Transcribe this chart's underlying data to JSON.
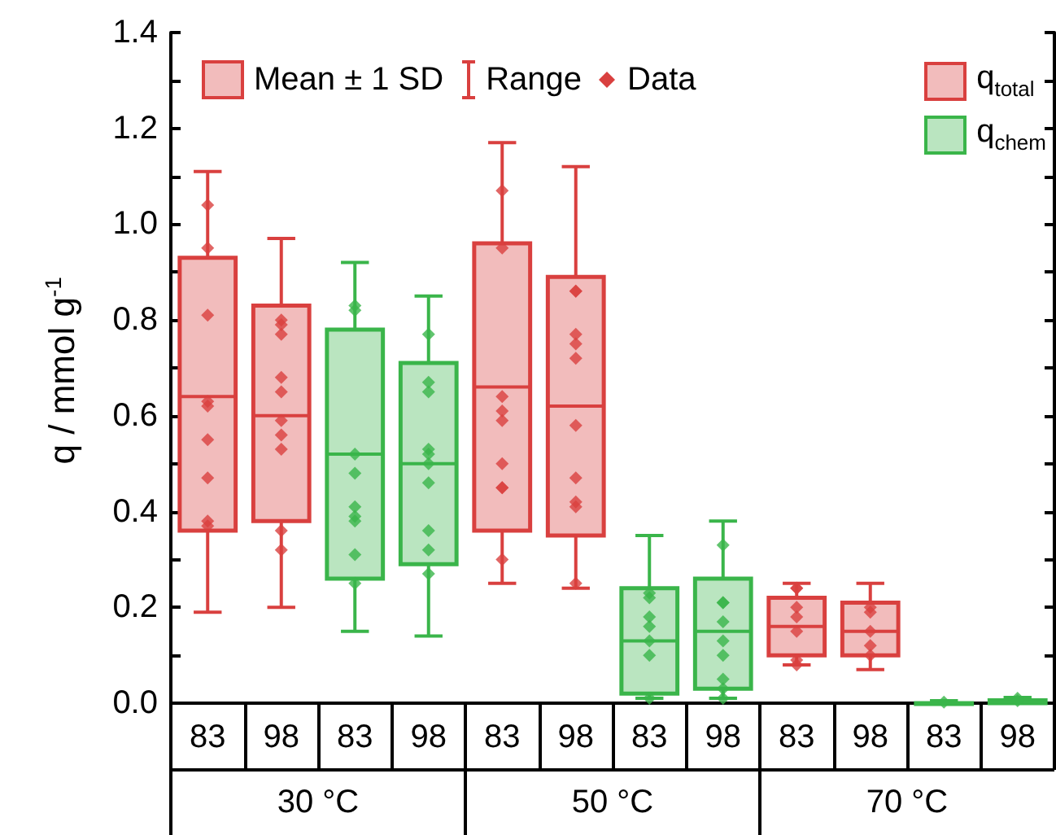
{
  "chart_data": {
    "type": "box",
    "ylabel": "q / mmol g$^{-1}$",
    "categories": [
      "83",
      "98",
      "83",
      "98",
      "83",
      "98",
      "83",
      "98",
      "83",
      "98",
      "83",
      "98"
    ],
    "ylim": [
      0,
      1.4
    ],
    "yticks": [
      {
        "value": 0,
        "label": "0.0"
      },
      {
        "value": 0.1,
        "label": null
      },
      {
        "value": 0.2,
        "label": "0.2"
      },
      {
        "value": 0.3,
        "label": null
      },
      {
        "value": 0.4,
        "label": "0.4"
      },
      {
        "value": 0.5,
        "label": null
      },
      {
        "value": 0.6,
        "label": "0.6"
      },
      {
        "value": 0.7,
        "label": null
      },
      {
        "value": 0.8,
        "label": "0.8"
      },
      {
        "value": 0.9,
        "label": null
      },
      {
        "value": 1.0,
        "label": "1.0"
      },
      {
        "value": 1.1,
        "label": null
      },
      {
        "value": 1.2,
        "label": "1.2"
      },
      {
        "value": 1.3,
        "label": null
      },
      {
        "value": 1.4,
        "label": "1.4"
      }
    ],
    "series": [
      {
        "name": "q$_{total}$",
        "color": "#d9403f",
        "boxes": [
          {
            "low": 0.19,
            "q1": 0.36,
            "median": 0.64,
            "q3": 0.93,
            "high": 1.11,
            "outliers": [
              1.04,
              0.95,
              0.81,
              0.63,
              0.62,
              0.55,
              0.47,
              0.38,
              0.37
            ]
          },
          {
            "low": 0.2,
            "q1": 0.38,
            "median": 0.6,
            "q3": 0.83,
            "high": 0.97,
            "outliers": [
              0.8,
              0.79,
              0.77,
              0.68,
              0.65,
              0.59,
              0.56,
              0.53,
              0.36,
              0.32
            ]
          },
          null,
          null,
          {
            "low": 0.25,
            "q1": 0.36,
            "median": 0.66,
            "q3": 0.96,
            "high": 1.17,
            "outliers": [
              1.07,
              0.95,
              0.64,
              0.61,
              0.59,
              0.5,
              0.45,
              0.45,
              0.3
            ]
          },
          {
            "low": 0.24,
            "q1": 0.35,
            "median": 0.62,
            "q3": 0.89,
            "high": 1.12,
            "outliers": [
              0.86,
              0.86,
              0.77,
              0.75,
              0.72,
              0.58,
              0.47,
              0.42,
              0.41,
              0.25
            ]
          },
          null,
          null,
          {
            "low": 0.08,
            "q1": 0.1,
            "median": 0.16,
            "q3": 0.22,
            "high": 0.25,
            "outliers": [
              0.24,
              0.24,
              0.2,
              0.18,
              0.15,
              0.09,
              0.08
            ]
          },
          {
            "low": 0.07,
            "q1": 0.1,
            "median": 0.15,
            "q3": 0.21,
            "high": 0.25,
            "outliers": [
              0.2,
              0.19,
              0.15,
              0.12,
              0.1
            ]
          },
          null,
          null
        ]
      },
      {
        "name": "q$_{chem}$",
        "color": "#3ab54a",
        "boxes": [
          null,
          null,
          {
            "low": 0.15,
            "q1": 0.26,
            "median": 0.52,
            "q3": 0.78,
            "high": 0.92,
            "outliers": [
              0.83,
              0.82,
              0.52,
              0.48,
              0.41,
              0.39,
              0.38,
              0.31,
              0.25
            ]
          },
          {
            "low": 0.14,
            "q1": 0.29,
            "median": 0.5,
            "q3": 0.71,
            "high": 0.85,
            "outliers": [
              0.77,
              0.67,
              0.65,
              0.53,
              0.52,
              0.5,
              0.46,
              0.36,
              0.32,
              0.27
            ]
          },
          null,
          null,
          {
            "low": 0.01,
            "q1": 0.02,
            "median": 0.13,
            "q3": 0.24,
            "high": 0.35,
            "outliers": [
              0.23,
              0.22,
              0.18,
              0.16,
              0.13,
              0.1,
              0.01
            ]
          },
          {
            "low": 0.01,
            "q1": 0.03,
            "median": 0.15,
            "q3": 0.26,
            "high": 0.38,
            "outliers": [
              0.33,
              0.21,
              0.21,
              0.17,
              0.13,
              0.1,
              0.05,
              0.03,
              0.01
            ]
          },
          null,
          null,
          {
            "low": 0,
            "q1": 0,
            "median": 0,
            "q3": 0,
            "high": 0.005,
            "outliers": [
              0.002
            ]
          },
          {
            "low": 0,
            "q1": 0,
            "median": 0.003,
            "q3": 0.006,
            "high": 0.012,
            "outliers": [
              0.01,
              0.005
            ]
          }
        ]
      }
    ],
    "annotations": [
      "Mean ± 1 SD",
      "Range",
      "Data",
      "30 °C",
      "50 °C",
      "70 °C"
    ],
    "marker": "diamond",
    "legend": "top right",
    "grid": false
  }
}
